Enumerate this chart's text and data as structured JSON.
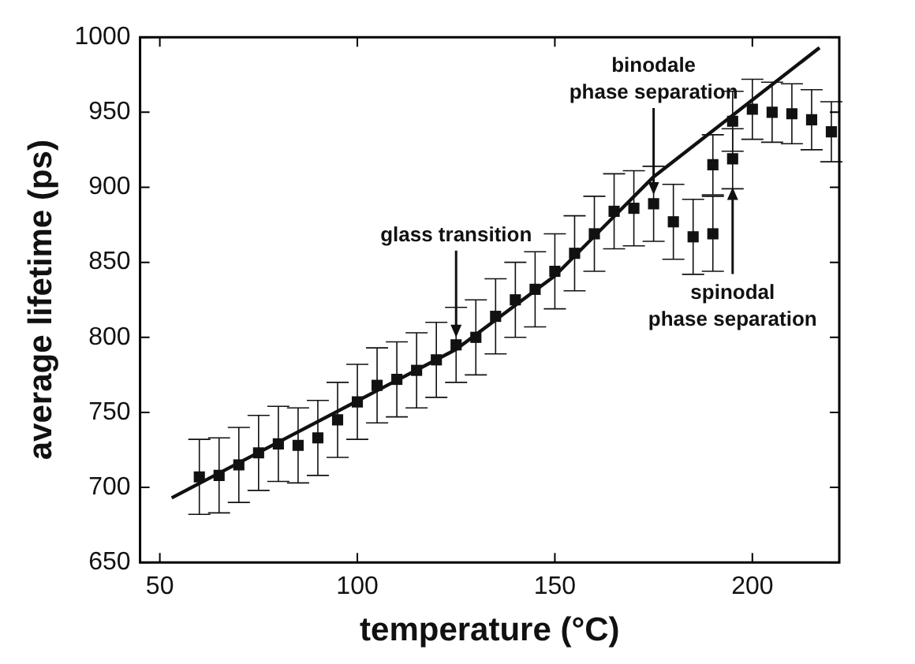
{
  "chart_data": {
    "type": "scatter",
    "xlabel": "temperature (°C)",
    "ylabel": "average lifetime (ps)",
    "xlim": [
      45,
      222
    ],
    "xticks": [
      50,
      100,
      150,
      200
    ],
    "ylim": [
      650,
      1000
    ],
    "yticks": [
      650,
      700,
      750,
      800,
      850,
      900,
      950,
      1000
    ],
    "grid": false,
    "legend": false,
    "marker": "square",
    "series": [
      {
        "color": "#111111",
        "x": [
          60,
          65,
          70,
          75,
          80,
          85,
          90,
          95,
          100,
          105,
          110,
          115,
          120,
          125,
          130,
          135,
          140,
          145,
          150,
          155,
          160,
          165,
          170,
          175,
          180,
          185,
          190,
          190,
          195,
          195,
          200,
          205,
          210,
          215,
          220
        ],
        "values": [
          707,
          708,
          715,
          723,
          729,
          728,
          733,
          745,
          757,
          768,
          772,
          778,
          785,
          795,
          800,
          814,
          825,
          832,
          844,
          856,
          869,
          884,
          886,
          889,
          877,
          867,
          869,
          915,
          944,
          919,
          952,
          950,
          949,
          945,
          937
        ],
        "errors": [
          25,
          25,
          25,
          25,
          25,
          25,
          25,
          25,
          25,
          25,
          25,
          25,
          25,
          25,
          25,
          25,
          25,
          25,
          25,
          25,
          25,
          25,
          25,
          25,
          25,
          25,
          25,
          20,
          20,
          20,
          20,
          20,
          20,
          20,
          20
        ]
      },
      {
        "type": "line",
        "color": "#111111",
        "marker": "none",
        "x": [
          53,
          125,
          150,
          175,
          217
        ],
        "values": [
          693,
          792,
          841,
          907,
          993
        ]
      }
    ],
    "annotations": [
      {
        "text": "glass transition",
        "x": 125,
        "y": 800
      },
      {
        "text": "binodale\nphase separation",
        "x": 175,
        "y": 895
      },
      {
        "text": "spinodal\nphase separation",
        "x": 195,
        "y": 900
      }
    ]
  }
}
